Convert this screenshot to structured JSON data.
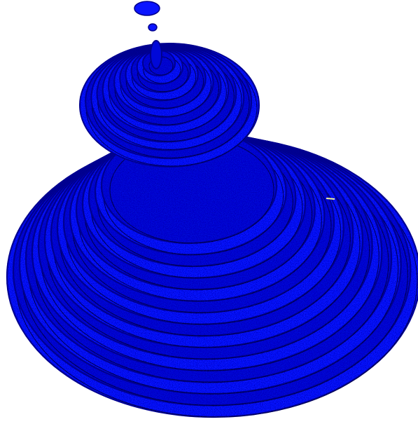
{
  "scene": {
    "subject": "spiral-ring-tower",
    "colors": {
      "background": "#ffffff",
      "primary": "#0a14ff",
      "mid": "#0008d8",
      "shadow": "#00008c",
      "edge": "#000033",
      "highlight": "#f5f5a0"
    }
  }
}
